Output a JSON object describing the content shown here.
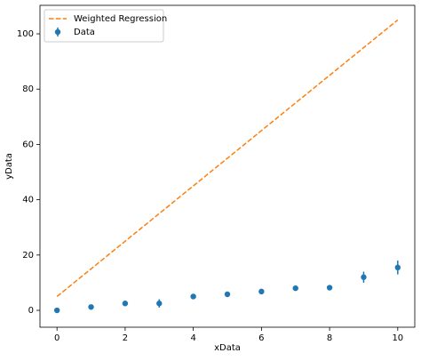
{
  "chart_data": {
    "type": "errorbar",
    "xlabel": "xData",
    "ylabel": "yData",
    "xlim": [
      -0.5,
      10.5
    ],
    "xticks": [
      0,
      2,
      4,
      6,
      8,
      10
    ],
    "ylim": [
      -6.1,
      110.3
    ],
    "yticks": [
      0,
      20,
      40,
      60,
      80,
      100
    ],
    "grid": false,
    "legend": "upper left",
    "series": [
      {
        "name": "Weighted Regression",
        "kind": "line",
        "dashed": true,
        "color": "#ff7f0e",
        "x": [
          0,
          10
        ],
        "values": [
          5,
          105
        ]
      },
      {
        "name": "Data",
        "kind": "errorbar",
        "color": "#1f77b4",
        "x": [
          0,
          1,
          2,
          3,
          4,
          5,
          6,
          7,
          8,
          9,
          10
        ],
        "values": [
          0,
          1.2,
          2.5,
          2.5,
          5,
          5.8,
          6.8,
          8,
          8.2,
          12,
          15.5
        ],
        "errors": [
          0.3,
          0.4,
          0.5,
          1.5,
          0.5,
          0.5,
          0.5,
          0.5,
          0.6,
          2,
          2.5
        ]
      }
    ]
  }
}
